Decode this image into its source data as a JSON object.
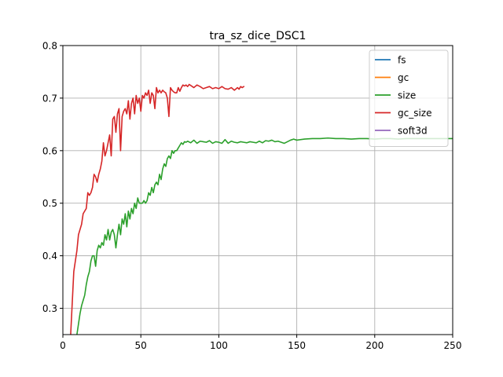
{
  "chart_data": {
    "type": "line",
    "title": "tra_sz_dice_DSC1",
    "xlabel": "",
    "ylabel": "",
    "xlim": [
      0,
      250
    ],
    "ylim": [
      0.25,
      0.8
    ],
    "x_ticks": [
      0,
      50,
      100,
      150,
      200,
      250
    ],
    "y_ticks": [
      0.3,
      0.4,
      0.5,
      0.6,
      0.7,
      0.8
    ],
    "grid": true,
    "legend_position": "top-right",
    "series": [
      {
        "name": "fs",
        "color": "#1f77b4",
        "points": []
      },
      {
        "name": "gc",
        "color": "#ff7f0e",
        "points": []
      },
      {
        "name": "size",
        "color": "#2ca02c",
        "points": [
          [
            9,
            0.25
          ],
          [
            10,
            0.27
          ],
          [
            11,
            0.29
          ],
          [
            12,
            0.305
          ],
          [
            13,
            0.315
          ],
          [
            14,
            0.325
          ],
          [
            15,
            0.345
          ],
          [
            16,
            0.36
          ],
          [
            17,
            0.37
          ],
          [
            18,
            0.39
          ],
          [
            19,
            0.4
          ],
          [
            20,
            0.4
          ],
          [
            21,
            0.38
          ],
          [
            22,
            0.41
          ],
          [
            23,
            0.42
          ],
          [
            24,
            0.415
          ],
          [
            25,
            0.425
          ],
          [
            26,
            0.42
          ],
          [
            27,
            0.44
          ],
          [
            28,
            0.43
          ],
          [
            29,
            0.45
          ],
          [
            30,
            0.43
          ],
          [
            31,
            0.445
          ],
          [
            32,
            0.45
          ],
          [
            33,
            0.44
          ],
          [
            34,
            0.415
          ],
          [
            35,
            0.44
          ],
          [
            36,
            0.46
          ],
          [
            37,
            0.44
          ],
          [
            38,
            0.47
          ],
          [
            39,
            0.46
          ],
          [
            40,
            0.48
          ],
          [
            41,
            0.455
          ],
          [
            42,
            0.485
          ],
          [
            43,
            0.47
          ],
          [
            44,
            0.49
          ],
          [
            45,
            0.48
          ],
          [
            46,
            0.5
          ],
          [
            47,
            0.49
          ],
          [
            48,
            0.51
          ],
          [
            49,
            0.5
          ],
          [
            50,
            0.5
          ],
          [
            51,
            0.5
          ],
          [
            52,
            0.505
          ],
          [
            53,
            0.5
          ],
          [
            54,
            0.505
          ],
          [
            55,
            0.52
          ],
          [
            56,
            0.515
          ],
          [
            57,
            0.53
          ],
          [
            58,
            0.52
          ],
          [
            59,
            0.535
          ],
          [
            60,
            0.54
          ],
          [
            61,
            0.535
          ],
          [
            62,
            0.555
          ],
          [
            63,
            0.545
          ],
          [
            64,
            0.565
          ],
          [
            65,
            0.575
          ],
          [
            66,
            0.57
          ],
          [
            67,
            0.585
          ],
          [
            68,
            0.59
          ],
          [
            69,
            0.585
          ],
          [
            70,
            0.6
          ],
          [
            71,
            0.595
          ],
          [
            72,
            0.6
          ],
          [
            73,
            0.6
          ],
          [
            74,
            0.605
          ],
          [
            75,
            0.61
          ],
          [
            76,
            0.615
          ],
          [
            77,
            0.612
          ],
          [
            78,
            0.617
          ],
          [
            79,
            0.616
          ],
          [
            80,
            0.618
          ],
          [
            82,
            0.615
          ],
          [
            84,
            0.62
          ],
          [
            86,
            0.614
          ],
          [
            88,
            0.618
          ],
          [
            90,
            0.617
          ],
          [
            92,
            0.616
          ],
          [
            94,
            0.619
          ],
          [
            96,
            0.614
          ],
          [
            98,
            0.617
          ],
          [
            100,
            0.616
          ],
          [
            102,
            0.614
          ],
          [
            104,
            0.621
          ],
          [
            106,
            0.614
          ],
          [
            108,
            0.618
          ],
          [
            110,
            0.616
          ],
          [
            112,
            0.615
          ],
          [
            114,
            0.617
          ],
          [
            116,
            0.616
          ],
          [
            118,
            0.615
          ],
          [
            120,
            0.617
          ],
          [
            122,
            0.616
          ],
          [
            124,
            0.615
          ],
          [
            126,
            0.618
          ],
          [
            128,
            0.615
          ],
          [
            130,
            0.619
          ],
          [
            132,
            0.618
          ],
          [
            134,
            0.62
          ],
          [
            136,
            0.617
          ],
          [
            138,
            0.618
          ],
          [
            140,
            0.616
          ],
          [
            142,
            0.614
          ],
          [
            144,
            0.617
          ],
          [
            146,
            0.62
          ],
          [
            148,
            0.622
          ],
          [
            150,
            0.62
          ],
          [
            155,
            0.622
          ],
          [
            160,
            0.623
          ],
          [
            165,
            0.623
          ],
          [
            170,
            0.624
          ],
          [
            175,
            0.623
          ],
          [
            180,
            0.623
          ],
          [
            185,
            0.622
          ],
          [
            190,
            0.623
          ],
          [
            195,
            0.623
          ],
          [
            200,
            0.622
          ],
          [
            205,
            0.623
          ],
          [
            210,
            0.623
          ],
          [
            215,
            0.622
          ],
          [
            220,
            0.623
          ],
          [
            225,
            0.623
          ],
          [
            230,
            0.623
          ],
          [
            235,
            0.623
          ],
          [
            240,
            0.623
          ],
          [
            245,
            0.623
          ],
          [
            250,
            0.623
          ]
        ]
      },
      {
        "name": "gc_size",
        "color": "#d62728",
        "points": [
          [
            5,
            0.25
          ],
          [
            6,
            0.31
          ],
          [
            7,
            0.37
          ],
          [
            8,
            0.39
          ],
          [
            9,
            0.41
          ],
          [
            10,
            0.44
          ],
          [
            11,
            0.45
          ],
          [
            12,
            0.46
          ],
          [
            13,
            0.48
          ],
          [
            14,
            0.485
          ],
          [
            15,
            0.49
          ],
          [
            16,
            0.52
          ],
          [
            17,
            0.515
          ],
          [
            18,
            0.52
          ],
          [
            19,
            0.53
          ],
          [
            20,
            0.555
          ],
          [
            21,
            0.55
          ],
          [
            22,
            0.54
          ],
          [
            23,
            0.555
          ],
          [
            24,
            0.565
          ],
          [
            25,
            0.58
          ],
          [
            26,
            0.615
          ],
          [
            27,
            0.59
          ],
          [
            28,
            0.6
          ],
          [
            29,
            0.615
          ],
          [
            30,
            0.63
          ],
          [
            31,
            0.59
          ],
          [
            32,
            0.66
          ],
          [
            33,
            0.665
          ],
          [
            34,
            0.635
          ],
          [
            35,
            0.67
          ],
          [
            36,
            0.68
          ],
          [
            37,
            0.6
          ],
          [
            38,
            0.665
          ],
          [
            39,
            0.675
          ],
          [
            40,
            0.68
          ],
          [
            41,
            0.67
          ],
          [
            42,
            0.695
          ],
          [
            43,
            0.66
          ],
          [
            44,
            0.69
          ],
          [
            45,
            0.7
          ],
          [
            46,
            0.67
          ],
          [
            47,
            0.705
          ],
          [
            48,
            0.69
          ],
          [
            49,
            0.7
          ],
          [
            50,
            0.675
          ],
          [
            51,
            0.705
          ],
          [
            52,
            0.7
          ],
          [
            53,
            0.71
          ],
          [
            54,
            0.705
          ],
          [
            55,
            0.715
          ],
          [
            56,
            0.69
          ],
          [
            57,
            0.71
          ],
          [
            58,
            0.705
          ],
          [
            59,
            0.68
          ],
          [
            60,
            0.72
          ],
          [
            61,
            0.71
          ],
          [
            62,
            0.715
          ],
          [
            63,
            0.71
          ],
          [
            64,
            0.715
          ],
          [
            65,
            0.712
          ],
          [
            66,
            0.71
          ],
          [
            67,
            0.7
          ],
          [
            68,
            0.665
          ],
          [
            69,
            0.72
          ],
          [
            70,
            0.715
          ],
          [
            71,
            0.712
          ],
          [
            72,
            0.71
          ],
          [
            73,
            0.71
          ],
          [
            74,
            0.72
          ],
          [
            75,
            0.713
          ],
          [
            76,
            0.72
          ],
          [
            77,
            0.725
          ],
          [
            78,
            0.723
          ],
          [
            79,
            0.725
          ],
          [
            80,
            0.722
          ],
          [
            81,
            0.726
          ],
          [
            82,
            0.724
          ],
          [
            84,
            0.72
          ],
          [
            86,
            0.725
          ],
          [
            88,
            0.722
          ],
          [
            90,
            0.718
          ],
          [
            92,
            0.72
          ],
          [
            94,
            0.722
          ],
          [
            96,
            0.718
          ],
          [
            98,
            0.72
          ],
          [
            100,
            0.718
          ],
          [
            102,
            0.722
          ],
          [
            104,
            0.718
          ],
          [
            106,
            0.717
          ],
          [
            108,
            0.72
          ],
          [
            110,
            0.715
          ],
          [
            112,
            0.72
          ],
          [
            113,
            0.717
          ],
          [
            114,
            0.722
          ],
          [
            115,
            0.72
          ],
          [
            116,
            0.722
          ]
        ]
      },
      {
        "name": "soft3d",
        "color": "#9467bd",
        "points": []
      }
    ]
  }
}
